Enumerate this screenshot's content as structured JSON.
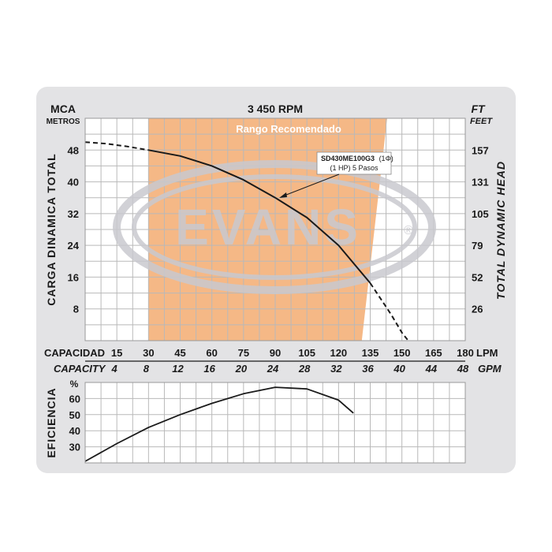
{
  "colors": {
    "panel_bg": "#e3e3e5",
    "plot_bg": "#ffffff",
    "grid": "#b9b9b9",
    "recommended_range": "#f5b886",
    "watermark": "#c9c9cf",
    "curve": "#1a1a1a"
  },
  "header": {
    "left_unit": "MCA",
    "left_unit_sub": "METROS",
    "title": "3 450 RPM",
    "right_unit": "FT",
    "right_unit_sub": "FEET"
  },
  "watermark": {
    "brand": "EVANS",
    "mark": "®"
  },
  "annotation": {
    "model": "SD430ME100G3",
    "phase": "(1Φ)",
    "detail": "(1 HP)  5 Pasos"
  },
  "chart_data": [
    {
      "type": "line",
      "name": "head_curve",
      "recommended_range_label": "Rango Recomendado",
      "recommended_range_lpm": {
        "top": [
          30,
          143
        ],
        "bottom": [
          30,
          131
        ]
      },
      "ylabel_left": "CARGA  DINAMICA  TOTAL",
      "ylabel_right": "TOTAL  DYNAMIC  HEAD",
      "xlabel_lpm": "CAPACIDAD",
      "xunit_lpm": "LPM",
      "xlabel_gpm": "CAPACITY",
      "xunit_gpm": "GPM",
      "xlim": [
        0,
        180
      ],
      "ylim": [
        0,
        56
      ],
      "x_ticks_lpm": [
        "15",
        "30",
        "45",
        "60",
        "75",
        "90",
        "105",
        "120",
        "135",
        "150",
        "165",
        "180"
      ],
      "x_ticks_gpm": [
        "4",
        "8",
        "12",
        "16",
        "20",
        "24",
        "28",
        "32",
        "36",
        "40",
        "44",
        "48"
      ],
      "y_ticks_left": [
        "48",
        "40",
        "32",
        "24",
        "16",
        "8"
      ],
      "y_ticks_right": [
        "157",
        "131",
        "105",
        "79",
        "52",
        "26"
      ],
      "grid": true,
      "series": [
        {
          "style": "dashed",
          "x": [
            0,
            10,
            20,
            30
          ],
          "y": [
            50.0,
            49.6,
            48.9,
            48.0
          ]
        },
        {
          "style": "solid",
          "x": [
            30,
            45,
            60,
            75,
            90,
            105,
            120,
            135
          ],
          "y": [
            48.0,
            46.5,
            44.0,
            40.5,
            36.0,
            31.0,
            24.0,
            14.5
          ]
        },
        {
          "style": "dashed",
          "x": [
            135,
            140,
            145,
            150,
            153
          ],
          "y": [
            14.5,
            10.5,
            6.5,
            2.0,
            0.0
          ]
        }
      ]
    },
    {
      "type": "line",
      "name": "efficiency_curve",
      "ylabel": "EFICIENCIA",
      "yunit": "%",
      "xlim": [
        0,
        180
      ],
      "ylim": [
        20,
        70
      ],
      "y_ticks": [
        "60",
        "50",
        "40",
        "30"
      ],
      "grid": true,
      "series": [
        {
          "style": "solid",
          "x": [
            0,
            15,
            30,
            45,
            60,
            75,
            90,
            105,
            120,
            127
          ],
          "y": [
            21,
            32,
            42,
            50,
            57,
            63,
            67,
            66,
            59,
            51
          ]
        }
      ]
    }
  ]
}
